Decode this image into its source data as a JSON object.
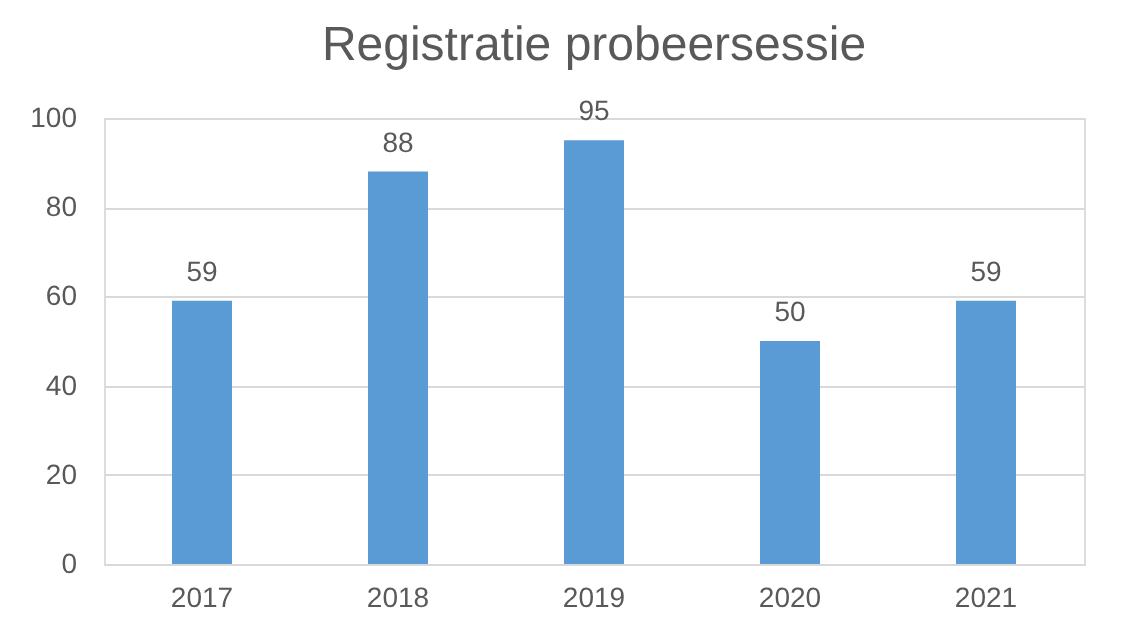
{
  "chart_data": {
    "type": "bar",
    "title": "Registratie probeersessie",
    "categories": [
      "2017",
      "2018",
      "2019",
      "2020",
      "2021"
    ],
    "values": [
      59,
      88,
      95,
      50,
      59
    ],
    "color": "#5b9bd5",
    "ylim": [
      0,
      100
    ],
    "yticks": [
      0,
      20,
      40,
      60,
      80,
      100
    ],
    "grid": "y",
    "data_labels": true
  }
}
